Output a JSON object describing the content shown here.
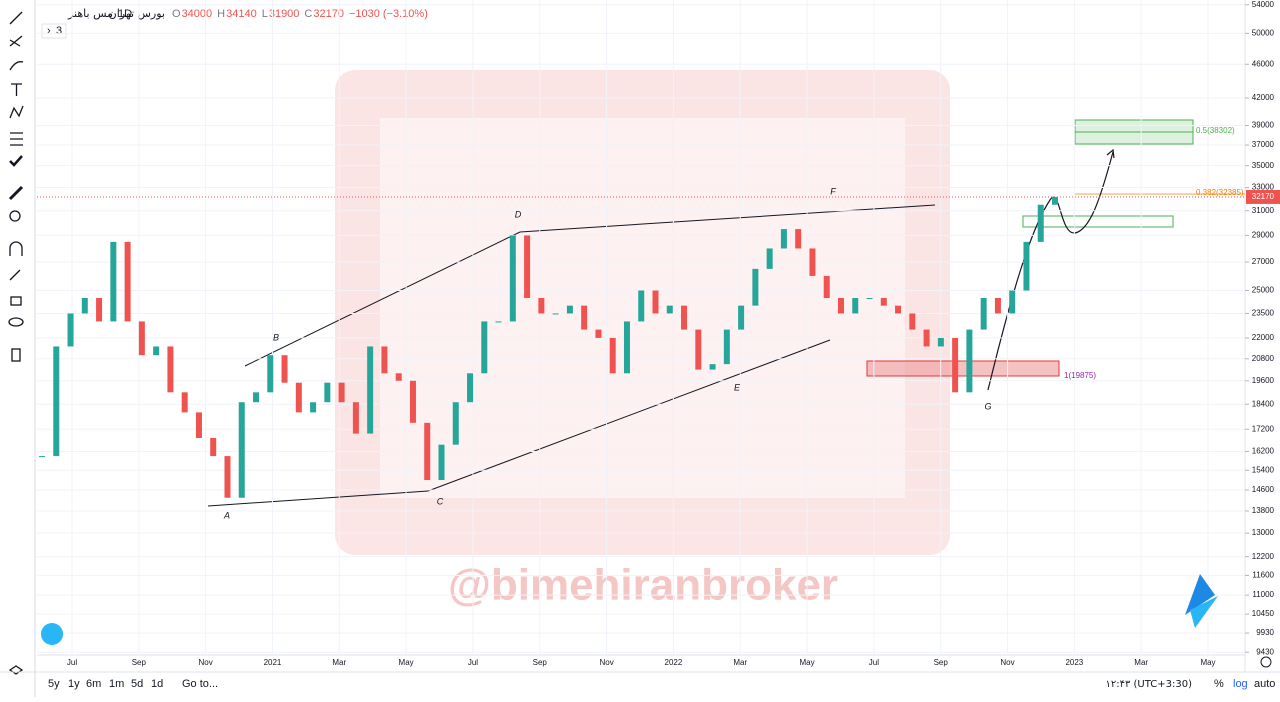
{
  "header": {
    "symbol": "مس باهنر",
    "interval": "1D",
    "exchange": "بورس تهران",
    "ohlc": [
      {
        "label": "O",
        "value": 34000
      },
      {
        "label": "H",
        "value": 34140
      },
      {
        "label": "L",
        "value": 31900
      },
      {
        "label": "C",
        "value": 32170
      }
    ],
    "change": "−1030 (−3.10%)",
    "studies_count": 3
  },
  "chart_data": {
    "type": "candlestick",
    "log_scale": true,
    "ylim": [
      9360,
      54700
    ],
    "yticks": [
      54000,
      50000,
      46000,
      42000,
      39000,
      37000,
      35000,
      33000,
      31000,
      29000,
      27000,
      25000,
      23500,
      22000,
      20800,
      19600,
      18400,
      17200,
      16200,
      15400,
      14600,
      13800,
      13000,
      12200,
      11600,
      11000,
      10450,
      9930,
      9430
    ],
    "categories": [
      "Jul",
      "Sep",
      "Nov",
      "2021",
      "Mar",
      "May",
      "Jul",
      "Sep",
      "Nov",
      "2022",
      "Mar",
      "May",
      "Jul",
      "Sep",
      "Nov",
      "2023",
      "Mar",
      "May"
    ],
    "closes": [
      16000,
      21500,
      23500,
      24500,
      23000,
      28500,
      23000,
      21000,
      21500,
      19000,
      18000,
      16800,
      16000,
      14300,
      18500,
      19000,
      21000,
      19500,
      18000,
      18500,
      19500,
      18500,
      17000,
      21500,
      20000,
      19600,
      17500,
      15000,
      16500,
      18500,
      20000,
      23000,
      23000,
      29000,
      24500,
      23500,
      23500,
      24000,
      22500,
      22000,
      20000,
      23000,
      25000,
      23500,
      24000,
      22500,
      20200,
      20500,
      22500,
      24000,
      26500,
      28000,
      29500,
      28000,
      26000,
      24500,
      23500,
      24500,
      24500,
      24000,
      23500,
      22500,
      21500,
      22000,
      19000,
      22500,
      24500,
      23500,
      25000,
      28500,
      31500,
      32170
    ],
    "up_color": "#26a69a",
    "down_color": "#ef5350",
    "last_price": 32170,
    "wave_labels": [
      "A",
      "B",
      "C",
      "D",
      "E",
      "F",
      "G"
    ],
    "annotations": [
      "0.5(38302)",
      "0.382(32385)",
      "1(19875)"
    ]
  },
  "watermark": "@bimehiranbroker",
  "footer": {
    "ranges": [
      "5y",
      "1y",
      "6m",
      "1m",
      "5d",
      "1d"
    ],
    "goto": "Go to...",
    "clock": "۱۲:۴۳ (UTC+3:30)",
    "options": [
      "%",
      "log",
      "auto"
    ]
  }
}
